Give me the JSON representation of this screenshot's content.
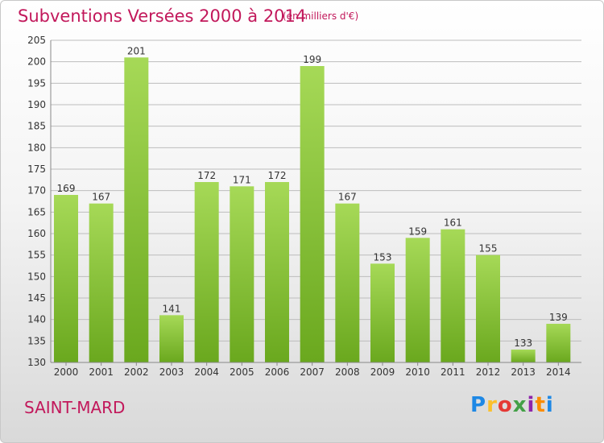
{
  "title": "Subventions Versées 2000 à 2014",
  "subtitle": "(en milliers d'€)",
  "commune": "SAINT-MARD",
  "logo": {
    "letters": [
      "P",
      "r",
      "o",
      "x",
      "i",
      "t",
      "i"
    ],
    "colors": [
      "#1e88e5",
      "#fbc02d",
      "#e53935",
      "#43a047",
      "#8e24aa",
      "#fb8c00",
      "#1e88e5"
    ]
  },
  "colors": {
    "accent": "#c2185b",
    "bar_light": "#a6d957",
    "bar_dark": "#6aa81e"
  },
  "chart_data": {
    "type": "bar",
    "categories": [
      "2000",
      "2001",
      "2002",
      "2003",
      "2004",
      "2005",
      "2006",
      "2007",
      "2008",
      "2009",
      "2010",
      "2011",
      "2012",
      "2013",
      "2014"
    ],
    "values": [
      169,
      167,
      201,
      141,
      172,
      171,
      172,
      199,
      167,
      153,
      159,
      161,
      155,
      133,
      139
    ],
    "title": "Subventions Versées 2000 à 2014",
    "ylim": [
      130,
      205
    ],
    "yticks": [
      130,
      135,
      140,
      145,
      150,
      155,
      160,
      165,
      170,
      175,
      180,
      185,
      190,
      195,
      200,
      205
    ],
    "grid": true,
    "legend": "none"
  }
}
